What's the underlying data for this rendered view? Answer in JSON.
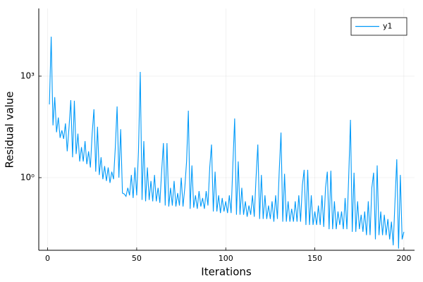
{
  "chart_data": {
    "type": "line",
    "xlabel": "Iterations",
    "ylabel": "Residual value",
    "x": [
      1,
      2,
      3,
      4,
      5,
      6,
      7,
      8,
      9,
      10,
      11,
      12,
      13,
      14,
      15,
      16,
      17,
      18,
      19,
      20,
      21,
      22,
      23,
      24,
      25,
      26,
      27,
      28,
      29,
      30,
      31,
      32,
      33,
      34,
      35,
      36,
      37,
      38,
      39,
      40,
      41,
      42,
      43,
      44,
      45,
      46,
      47,
      48,
      49,
      50,
      51,
      52,
      53,
      54,
      55,
      56,
      57,
      58,
      59,
      60,
      61,
      62,
      63,
      64,
      65,
      66,
      67,
      68,
      69,
      70,
      71,
      72,
      73,
      74,
      75,
      76,
      77,
      78,
      79,
      80,
      81,
      82,
      83,
      84,
      85,
      86,
      87,
      88,
      89,
      90,
      91,
      92,
      93,
      94,
      95,
      96,
      97,
      98,
      99,
      100,
      101,
      102,
      103,
      104,
      105,
      106,
      107,
      108,
      109,
      110,
      111,
      112,
      113,
      114,
      115,
      116,
      117,
      118,
      119,
      120,
      121,
      122,
      123,
      124,
      125,
      126,
      127,
      128,
      129,
      130,
      131,
      132,
      133,
      134,
      135,
      136,
      137,
      138,
      139,
      140,
      141,
      142,
      143,
      144,
      145,
      146,
      147,
      148,
      149,
      150,
      151,
      152,
      153,
      154,
      155,
      156,
      157,
      158,
      159,
      160,
      161,
      162,
      163,
      164,
      165,
      166,
      167,
      168,
      169,
      170,
      171,
      172,
      173,
      174,
      175,
      176,
      177,
      178,
      179,
      180,
      181,
      182,
      183,
      184,
      185,
      186,
      187,
      188,
      189,
      190,
      191,
      192,
      193,
      194,
      195,
      196,
      197,
      198,
      199,
      200
    ],
    "series": [
      {
        "name": "y1",
        "color": "#009af9",
        "values": [
          146,
          14700,
          35,
          240,
          22,
          60,
          15,
          25,
          14,
          40,
          6,
          30,
          195,
          4,
          187,
          5,
          20,
          3,
          8,
          3,
          12,
          2.5,
          6,
          2,
          20,
          105,
          1.5,
          32,
          1.2,
          4,
          0.9,
          2.2,
          0.8,
          2,
          0.7,
          1.5,
          0.9,
          8,
          127,
          1,
          27,
          0.35,
          0.33,
          0.28,
          0.5,
          0.3,
          1.2,
          0.25,
          2,
          0.3,
          6,
          1330,
          0.22,
          12,
          0.2,
          2,
          0.22,
          0.8,
          0.2,
          1.2,
          0.2,
          0.5,
          0.18,
          1.5,
          10.5,
          0.15,
          10.5,
          0.14,
          0.5,
          0.15,
          0.8,
          0.14,
          0.35,
          0.15,
          1,
          0.14,
          0.5,
          3,
          95,
          0.12,
          2.3,
          0.13,
          0.3,
          0.12,
          0.4,
          0.14,
          0.25,
          0.12,
          0.4,
          0.15,
          2,
          9.5,
          0.1,
          1.5,
          0.1,
          0.3,
          0.09,
          0.25,
          0.1,
          0.2,
          0.09,
          0.3,
          0.09,
          2.5,
          56,
          0.08,
          3,
          0.08,
          0.5,
          0.08,
          0.2,
          0.07,
          0.15,
          0.08,
          0.3,
          0.07,
          1,
          9.5,
          0.06,
          1.2,
          0.06,
          0.3,
          0.06,
          0.15,
          0.06,
          0.2,
          0.05,
          0.3,
          0.06,
          1.5,
          21.5,
          0.05,
          1.3,
          0.05,
          0.2,
          0.05,
          0.12,
          0.05,
          0.2,
          0.05,
          0.3,
          0.05,
          0.6,
          1.7,
          0.04,
          1.7,
          0.04,
          0.3,
          0.04,
          0.1,
          0.04,
          0.15,
          0.04,
          0.3,
          0.035,
          0.5,
          1.5,
          0.03,
          1.6,
          0.03,
          0.2,
          0.03,
          0.1,
          0.04,
          0.1,
          0.03,
          0.25,
          0.03,
          1,
          51,
          0.025,
          1.4,
          0.025,
          0.2,
          0.03,
          0.08,
          0.025,
          0.1,
          0.02,
          0.2,
          0.02,
          0.5,
          1.4,
          0.015,
          2.3,
          0.02,
          0.1,
          0.02,
          0.08,
          0.02,
          0.06,
          0.015,
          0.05,
          0.01,
          0.2,
          3.5,
          0.008,
          1.2,
          0.015,
          0.025
        ]
      }
    ],
    "xlim": [
      -4.97,
      205.97
    ],
    "xticks": [
      0,
      50,
      100,
      150,
      200
    ],
    "ylim": [
      0.00714,
      100000
    ],
    "yticks": [
      {
        "value": 1,
        "label": "10⁰"
      },
      {
        "value": 1000,
        "label": "10³"
      }
    ],
    "ylog": true,
    "grid": true,
    "legend": "top-right"
  }
}
